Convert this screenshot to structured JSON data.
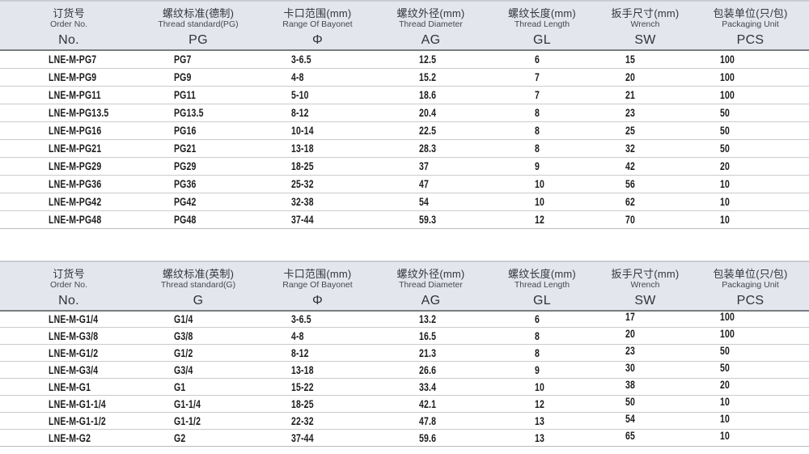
{
  "colors": {
    "header_bg": "#e3e6ec",
    "header_rule": "#7a7d80",
    "header_top": "#c9ccd0",
    "row_line": "#c9cbce",
    "row_end": "#b9bbbe",
    "text_dark": "#1d1d1d",
    "text_head": "#333639"
  },
  "tables": [
    {
      "name": "pg-thread-spec-table",
      "columns": [
        {
          "zh": "订货号",
          "en": "Order No.",
          "code": "No."
        },
        {
          "zh": "螺纹标准(德制)",
          "en": "Thread standard(PG)",
          "code": "PG"
        },
        {
          "zh": "卡口范围(mm)",
          "en": "Range Of Bayonet",
          "code": "Φ"
        },
        {
          "zh": "螺纹外径(mm)",
          "en": "Thread Diameter",
          "code": "AG"
        },
        {
          "zh": "螺纹长度(mm)",
          "en": "Thread Length",
          "code": "GL"
        },
        {
          "zh": "扳手尺寸(mm)",
          "en": "Wrench",
          "code": "SW"
        },
        {
          "zh": "包装单位(只/包)",
          "en": "Packaging Unit",
          "code": "PCS"
        }
      ],
      "rows": [
        [
          "LNE-M-PG7",
          "PG7",
          "3-6.5",
          "12.5",
          "6",
          "15",
          "100"
        ],
        [
          "LNE-M-PG9",
          "PG9",
          "4-8",
          "15.2",
          "7",
          "20",
          "100"
        ],
        [
          "LNE-M-PG11",
          "PG11",
          "5-10",
          "18.6",
          "7",
          "21",
          "100"
        ],
        [
          "LNE-M-PG13.5",
          "PG13.5",
          "8-12",
          "20.4",
          "8",
          "23",
          "50"
        ],
        [
          "LNE-M-PG16",
          "PG16",
          "10-14",
          "22.5",
          "8",
          "25",
          "50"
        ],
        [
          "LNE-M-PG21",
          "PG21",
          "13-18",
          "28.3",
          "8",
          "32",
          "50"
        ],
        [
          "LNE-M-PG29",
          "PG29",
          "18-25",
          "37",
          "9",
          "42",
          "20"
        ],
        [
          "LNE-M-PG36",
          "PG36",
          "25-32",
          "47",
          "10",
          "56",
          "10"
        ],
        [
          "LNE-M-PG42",
          "PG42",
          "32-38",
          "54",
          "10",
          "62",
          "10"
        ],
        [
          "LNE-M-PG48",
          "PG48",
          "37-44",
          "59.3",
          "12",
          "70",
          "10"
        ]
      ]
    },
    {
      "name": "g-thread-spec-table",
      "columns": [
        {
          "zh": "订货号",
          "en": "Order No.",
          "code": "No."
        },
        {
          "zh": "螺纹标准(英制)",
          "en": "Thread standard(G)",
          "code": "G"
        },
        {
          "zh": "卡口范围(mm)",
          "en": "Range Of Bayonet",
          "code": "Φ"
        },
        {
          "zh": "螺纹外径(mm)",
          "en": "Thread Diameter",
          "code": "AG"
        },
        {
          "zh": "螺纹长度(mm)",
          "en": "Thread Length",
          "code": "GL"
        },
        {
          "zh": "扳手尺寸(mm)",
          "en": "Wrench",
          "code": "SW"
        },
        {
          "zh": "包装单位(只/包)",
          "en": "Packaging Unit",
          "code": "PCS"
        }
      ],
      "rows": [
        [
          "LNE-M-G1/4",
          "G1/4",
          "3-6.5",
          "13.2",
          "6",
          "17",
          "100"
        ],
        [
          "LNE-M-G3/8",
          "G3/8",
          "4-8",
          "16.5",
          "8",
          "20",
          "100"
        ],
        [
          "LNE-M-G1/2",
          "G1/2",
          "8-12",
          "21.3",
          "8",
          "23",
          "50"
        ],
        [
          "LNE-M-G3/4",
          "G3/4",
          "13-18",
          "26.6",
          "9",
          "30",
          "50"
        ],
        [
          "LNE-M-G1",
          "G1",
          "15-22",
          "33.4",
          "10",
          "38",
          "20"
        ],
        [
          "LNE-M-G1-1/4",
          "G1-1/4",
          "18-25",
          "42.1",
          "12",
          "50",
          "10"
        ],
        [
          "LNE-M-G1-1/2",
          "G1-1/2",
          "22-32",
          "47.8",
          "13",
          "54",
          "10"
        ],
        [
          "LNE-M-G2",
          "G2",
          "37-44",
          "59.6",
          "13",
          "65",
          "10"
        ]
      ]
    }
  ]
}
